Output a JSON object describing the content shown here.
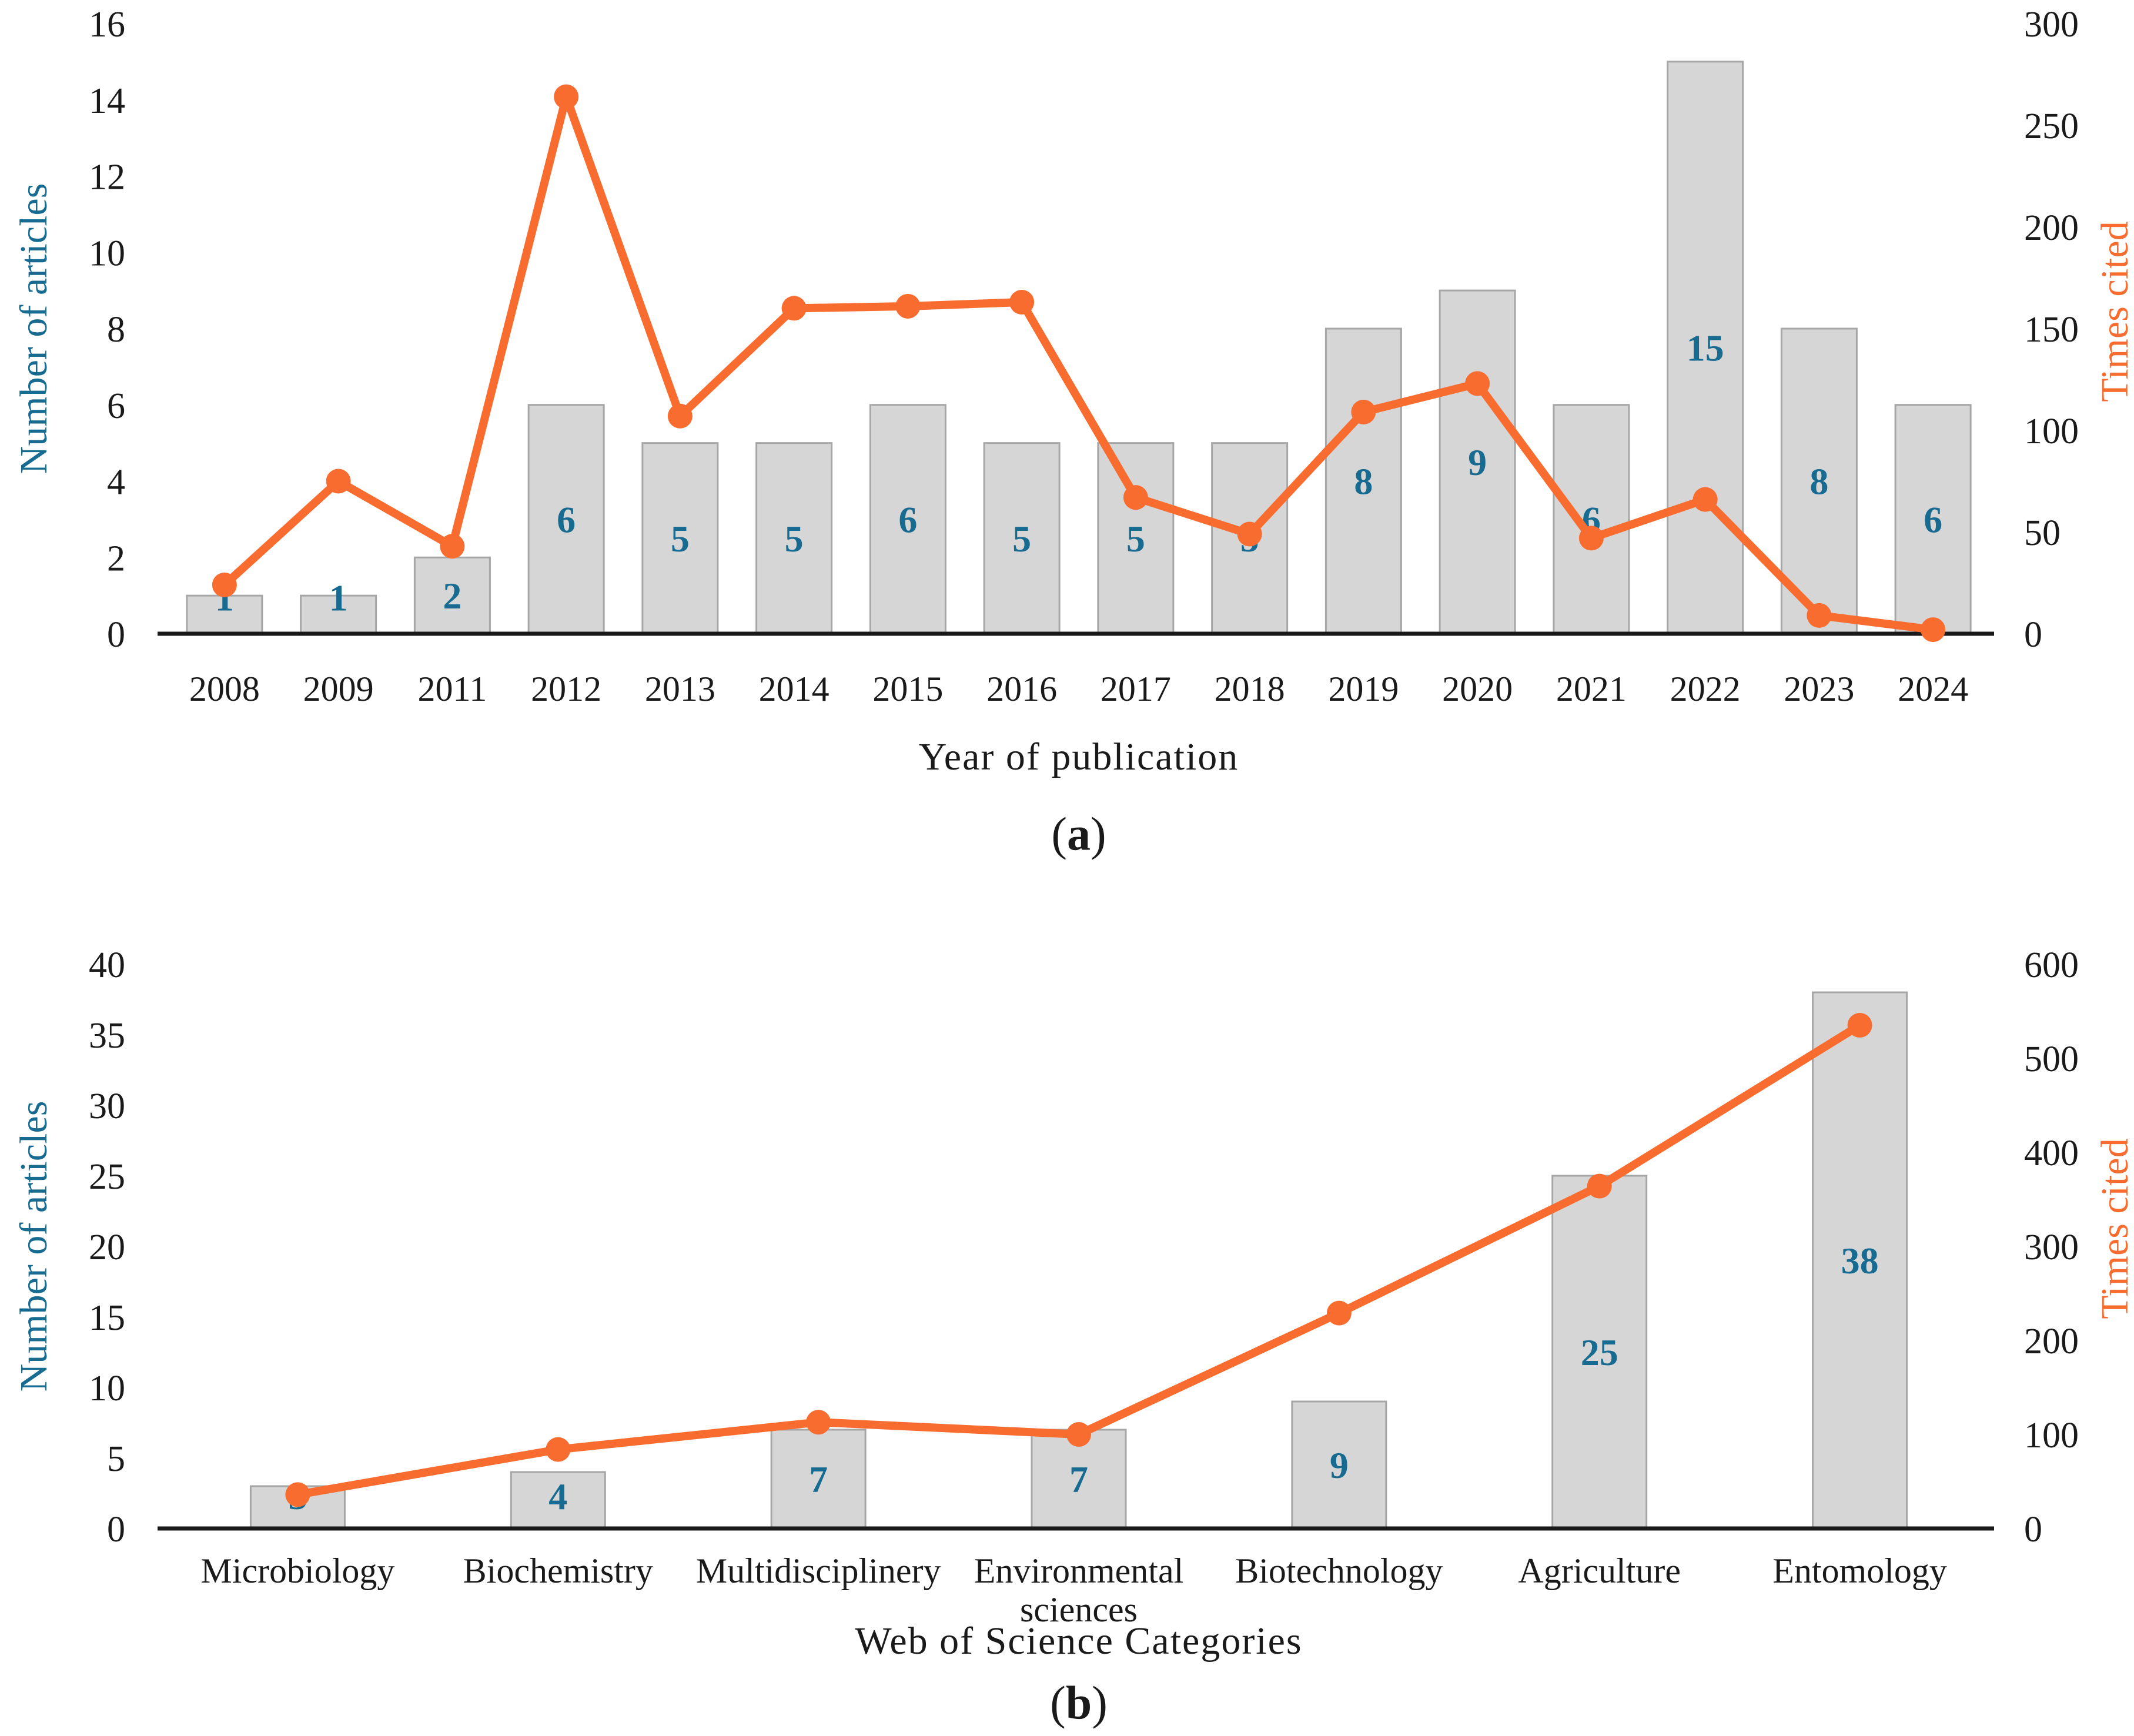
{
  "colors": {
    "bar_fill": "#D6D6D6",
    "bar_border": "#A6A6A6",
    "line_orange": "#F96C2F",
    "label_blue": "#186B90",
    "axis_black": "#1a1a1a"
  },
  "captions": {
    "a_open": "(",
    "a_letter": "a",
    "a_close": ")",
    "b_open": "(",
    "b_letter": "b",
    "b_close": ")"
  },
  "chart_data": [
    {
      "type": "bar",
      "subtype": "bar+line-dual-axis",
      "title": "",
      "xlabel": "Year of publication",
      "ylabel_left": "Number of articles",
      "ylabel_right": "Times cited",
      "categories": [
        "2008",
        "2009",
        "2011",
        "2012",
        "2013",
        "2014",
        "2015",
        "2016",
        "2017",
        "2018",
        "2019",
        "2020",
        "2021",
        "2022",
        "2023",
        "2024"
      ],
      "series": [
        {
          "name": "Number of articles",
          "type": "bar",
          "axis": "left",
          "values": [
            1,
            1,
            2,
            6,
            5,
            5,
            6,
            5,
            5,
            5,
            8,
            9,
            6,
            15,
            8,
            6
          ],
          "data_labels": [
            "1",
            "1",
            "2",
            "6",
            "5",
            "5",
            "6",
            "5",
            "5",
            "5",
            "8",
            "9",
            "6",
            "15",
            "8",
            "6"
          ]
        },
        {
          "name": "Times cited",
          "type": "line",
          "axis": "right",
          "values": [
            24,
            75,
            43,
            264,
            107,
            160,
            161,
            163,
            67,
            49,
            109,
            123,
            47,
            66,
            9,
            2
          ]
        }
      ],
      "ylim_left": [
        0,
        16
      ],
      "yticks_left": [
        "0",
        "2",
        "4",
        "6",
        "8",
        "10",
        "12",
        "14",
        "16"
      ],
      "ylim_right": [
        0,
        300
      ],
      "yticks_right": [
        "0",
        "50",
        "100",
        "150",
        "200",
        "250",
        "300"
      ],
      "grid": "off",
      "legend": "none"
    },
    {
      "type": "bar",
      "subtype": "bar+line-dual-axis",
      "title": "",
      "xlabel": "Web of Science Categories",
      "ylabel_left": "Number of articles",
      "ylabel_right": "Times cited",
      "categories": [
        "Microbiology",
        "Biochemistry",
        "Multidisciplinery",
        "Environmental sciences",
        "Biotechnology",
        "Agriculture",
        "Entomology"
      ],
      "series": [
        {
          "name": "Number of articles",
          "type": "bar",
          "axis": "left",
          "values": [
            3,
            4,
            7,
            7,
            9,
            25,
            38
          ],
          "data_labels": [
            "3",
            "4",
            "7",
            "7",
            "9",
            "25",
            "38"
          ]
        },
        {
          "name": "Times cited",
          "type": "line",
          "axis": "right",
          "values": [
            36,
            84,
            113,
            100,
            229,
            364,
            535
          ]
        }
      ],
      "ylim_left": [
        0,
        40
      ],
      "yticks_left": [
        "0",
        "5",
        "10",
        "15",
        "20",
        "25",
        "30",
        "35",
        "40"
      ],
      "ylim_right": [
        0,
        600
      ],
      "yticks_right": [
        "0",
        "100",
        "200",
        "300",
        "400",
        "500",
        "600"
      ],
      "grid": "off",
      "legend": "none"
    }
  ]
}
